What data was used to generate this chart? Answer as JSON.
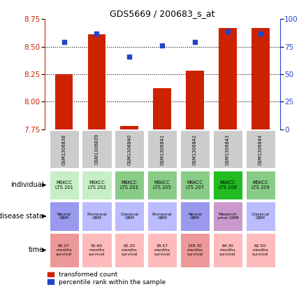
{
  "title": "GDS5669 / 200683_s_at",
  "samples": [
    "GSM1306838",
    "GSM1306839",
    "GSM1306840",
    "GSM1306841",
    "GSM1306842",
    "GSM1306843",
    "GSM1306844"
  ],
  "red_values": [
    8.25,
    8.61,
    7.78,
    8.12,
    8.28,
    8.67,
    8.67
  ],
  "blue_values": [
    79,
    87,
    66,
    76,
    79,
    89,
    87
  ],
  "ylim_left": [
    7.75,
    8.75
  ],
  "ylim_right": [
    0,
    100
  ],
  "yticks_left": [
    7.75,
    8.0,
    8.25,
    8.5,
    8.75
  ],
  "yticks_right": [
    0,
    25,
    50,
    75,
    100
  ],
  "individual": [
    "MSKCC\nLTS 201",
    "MSKCC\nLTS 202",
    "MSKCC\nLTS 203",
    "MSKCC\nLTS 205",
    "MSKCC\nLTS 207",
    "MSKCC\nLTS 208",
    "MSKCC\nLTS 209"
  ],
  "individual_colors": [
    "#c8eec8",
    "#c8eec8",
    "#88cc88",
    "#88cc88",
    "#88cc88",
    "#22bb22",
    "#88cc88"
  ],
  "disease_state": [
    "Neural\nGBM",
    "Proneural\nGBM",
    "Classical\nGBM",
    "Proneural\nGBM",
    "Neural\nGBM",
    "Mesench\nymal GBM",
    "Classical\nGBM"
  ],
  "disease_colors": [
    "#9999ee",
    "#bbbbff",
    "#bbbbff",
    "#bbbbff",
    "#9999ee",
    "#cc99cc",
    "#bbbbff"
  ],
  "time": [
    "92.07\nmonths\nsurvival",
    "50.60\nmonths\nsurvival",
    "62.20\nmonths\nsurvival",
    "58.57\nmonths\nsurvival",
    "138.30\nmonths\nsurvival",
    "64.30\nmonths\nsurvival",
    "62.50\nmonths\nsurvival"
  ],
  "time_colors": [
    "#ee9999",
    "#ffbbbb",
    "#ffbbbb",
    "#ffbbbb",
    "#ee9999",
    "#ffbbbb",
    "#ffbbbb"
  ],
  "red_color": "#cc2200",
  "blue_color": "#2244cc",
  "bar_bottom": 7.75,
  "legend_red": "transformed count",
  "legend_blue": "percentile rank within the sample",
  "sample_bg": "#cccccc",
  "grid_lines": [
    8.0,
    8.25,
    8.5
  ]
}
